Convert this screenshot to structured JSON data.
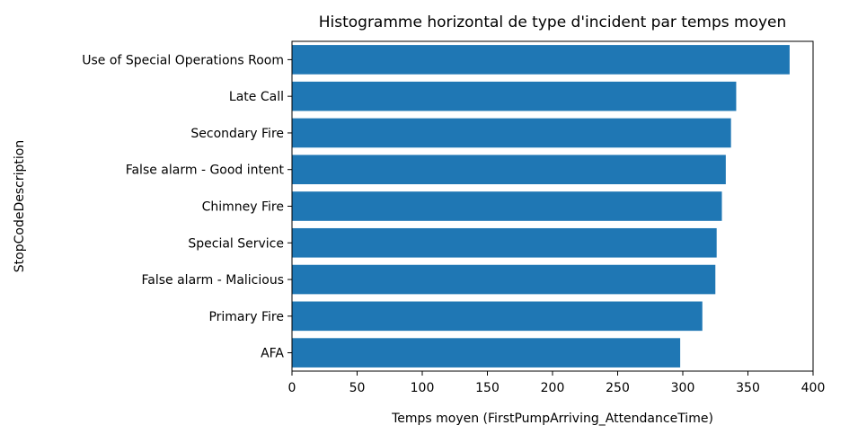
{
  "chart_data": {
    "type": "bar",
    "orientation": "horizontal",
    "title": "Histogramme horizontal de type d'incident par temps moyen",
    "xlabel": "Temps moyen (FirstPumpArriving_AttendanceTime)",
    "ylabel": "StopCodeDescription",
    "categories": [
      "Use of Special Operations Room",
      "Late Call",
      "Secondary Fire",
      "False alarm - Good intent",
      "Chimney Fire",
      "Special Service",
      "False alarm - Malicious",
      "Primary Fire",
      "AFA"
    ],
    "values": [
      382,
      341,
      337,
      333,
      330,
      326,
      325,
      315,
      298
    ],
    "xlim": [
      0,
      400
    ],
    "xticks": [
      "0",
      "50",
      "100",
      "150",
      "200",
      "250",
      "300",
      "350",
      "400"
    ],
    "bar_color": "#1f77b4",
    "grid": false,
    "legend": "none"
  }
}
